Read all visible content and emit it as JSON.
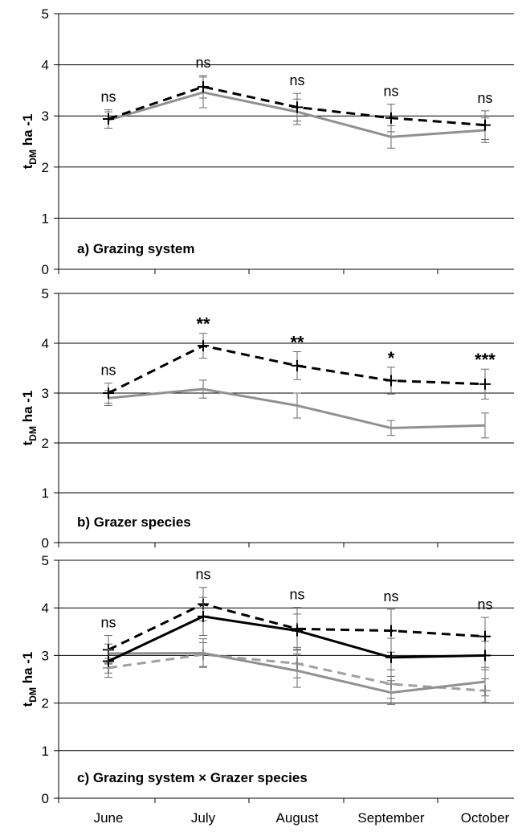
{
  "chart_data": [
    {
      "type": "line",
      "title": "a) Grazing system",
      "ylabel": {
        "main": "t",
        "sub": "DM",
        "unit": " ha -1"
      },
      "categories": [
        "June",
        "July",
        "August",
        "September",
        "October"
      ],
      "ylim": [
        0,
        5
      ],
      "yticks": [
        "0",
        "1",
        "2",
        "3",
        "4",
        "5"
      ],
      "grid": true,
      "series": [
        {
          "color": "#000000",
          "dash": true,
          "marker": "plus",
          "values": [
            2.94,
            3.57,
            3.17,
            2.96,
            2.82
          ],
          "err": [
            0.18,
            0.22,
            0.27,
            0.27,
            0.28
          ]
        },
        {
          "color": "#909090",
          "dash": false,
          "marker": "none",
          "values": [
            2.92,
            3.46,
            3.08,
            2.59,
            2.72
          ],
          "err": [
            0.16,
            0.3,
            0.25,
            0.22,
            0.24
          ]
        }
      ],
      "significance": [
        "ns",
        "ns",
        "ns",
        "ns",
        "ns"
      ]
    },
    {
      "type": "line",
      "title": "b) Grazer species",
      "ylabel": {
        "main": "t",
        "sub": "DM",
        "unit": " ha -1"
      },
      "categories": [
        "June",
        "July",
        "August",
        "September",
        "October"
      ],
      "ylim": [
        0,
        5
      ],
      "yticks": [
        "0",
        "1",
        "2",
        "3",
        "4",
        "5"
      ],
      "grid": true,
      "series": [
        {
          "color": "#000000",
          "dash": true,
          "marker": "plus",
          "values": [
            3.0,
            3.95,
            3.55,
            3.25,
            3.18
          ],
          "err": [
            0.2,
            0.25,
            0.28,
            0.27,
            0.3
          ]
        },
        {
          "color": "#909090",
          "dash": false,
          "marker": "none",
          "values": [
            2.9,
            3.08,
            2.75,
            2.3,
            2.35
          ],
          "err": [
            0.15,
            0.18,
            0.25,
            0.15,
            0.25
          ]
        }
      ],
      "significance": [
        "ns",
        "**",
        "**",
        "*",
        "***"
      ]
    },
    {
      "type": "line",
      "title": "c) Grazing system × Grazer species",
      "ylabel": {
        "main": "t",
        "sub": "DM",
        "unit": " ha -1"
      },
      "categories": [
        "June",
        "July",
        "August",
        "September",
        "October"
      ],
      "ylim": [
        0,
        5
      ],
      "yticks": [
        "0",
        "1",
        "2",
        "3",
        "4",
        "5"
      ],
      "grid": true,
      "series": [
        {
          "color": "#000000",
          "dash": true,
          "marker": "plus",
          "values": [
            3.12,
            4.08,
            3.56,
            3.52,
            3.4
          ],
          "err": [
            0.3,
            0.35,
            0.45,
            0.45,
            0.4
          ]
        },
        {
          "color": "#000000",
          "dash": false,
          "marker": "plus",
          "values": [
            2.88,
            3.82,
            3.52,
            2.96,
            3.0
          ],
          "err": [
            0.25,
            0.4,
            0.35,
            0.4,
            0.3
          ]
        },
        {
          "color": "#a0a0a0",
          "dash": true,
          "marker": "plus",
          "values": [
            2.74,
            3.02,
            2.83,
            2.4,
            2.26
          ],
          "err": [
            0.2,
            0.25,
            0.3,
            0.3,
            0.25
          ]
        },
        {
          "color": "#909090",
          "dash": false,
          "marker": "none",
          "values": [
            3.04,
            3.05,
            2.68,
            2.22,
            2.45
          ],
          "err": [
            0.2,
            0.3,
            0.35,
            0.25,
            0.3
          ]
        }
      ],
      "significance": [
        "ns",
        "ns",
        "ns",
        "ns",
        "ns"
      ]
    }
  ]
}
